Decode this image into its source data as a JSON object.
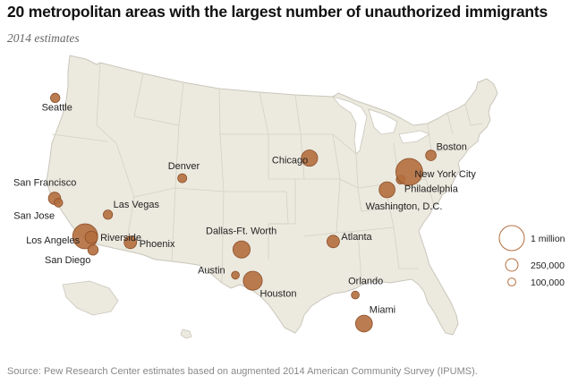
{
  "title": "20 metropolitan areas with the largest number of unauthorized immigrants",
  "subtitle": "2014 estimates",
  "source": "Source: Pew Research Center estimates based on augmented 2014 American Community Survey (IPUMS).",
  "colors": {
    "land": "#ece9df",
    "border": "#c9c6bb",
    "bubble_fill": "#b46e3e",
    "bubble_stroke": "#8a4f28",
    "legend_stroke": "#b46e3e"
  },
  "legend": {
    "items": [
      {
        "label": "1 million",
        "value": 1000000
      },
      {
        "label": "250,000",
        "value": 250000
      },
      {
        "label": "100,000",
        "value": 100000
      }
    ]
  },
  "cities": [
    {
      "name": "Seattle",
      "lon": -122.33,
      "lat": 47.61,
      "value": 140000
    },
    {
      "name": "San Francisco",
      "lon": -122.42,
      "lat": 37.77,
      "value": 240000
    },
    {
      "name": "San Jose",
      "lon": -121.89,
      "lat": 37.34,
      "value": 120000
    },
    {
      "name": "Los Angeles",
      "lon": -118.24,
      "lat": 34.05,
      "value": 1000000
    },
    {
      "name": "Riverside",
      "lon": -117.4,
      "lat": 33.95,
      "value": 250000
    },
    {
      "name": "San Diego",
      "lon": -117.16,
      "lat": 32.72,
      "value": 170000
    },
    {
      "name": "Las Vegas",
      "lon": -115.14,
      "lat": 36.17,
      "value": 140000
    },
    {
      "name": "Phoenix",
      "lon": -112.07,
      "lat": 33.45,
      "value": 250000
    },
    {
      "name": "Denver",
      "lon": -104.99,
      "lat": 39.74,
      "value": 130000
    },
    {
      "name": "Dallas-Ft. Worth",
      "lon": -96.9,
      "lat": 32.8,
      "value": 475000
    },
    {
      "name": "Austin",
      "lon": -97.74,
      "lat": 30.27,
      "value": 100000
    },
    {
      "name": "Houston",
      "lon": -95.37,
      "lat": 29.76,
      "value": 575000
    },
    {
      "name": "Chicago",
      "lon": -87.63,
      "lat": 41.88,
      "value": 425000
    },
    {
      "name": "Atlanta",
      "lon": -84.39,
      "lat": 33.75,
      "value": 250000
    },
    {
      "name": "Orlando",
      "lon": -81.38,
      "lat": 28.54,
      "value": 100000
    },
    {
      "name": "Miami",
      "lon": -80.19,
      "lat": 25.76,
      "value": 450000
    },
    {
      "name": "Washington, D.C.",
      "lon": -77.04,
      "lat": 38.91,
      "value": 400000
    },
    {
      "name": "Philadelphia",
      "lon": -75.17,
      "lat": 39.95,
      "value": 130000
    },
    {
      "name": "New York City",
      "lon": -74.01,
      "lat": 40.71,
      "value": 1150000
    },
    {
      "name": "Boston",
      "lon": -71.06,
      "lat": 42.36,
      "value": 180000
    }
  ]
}
